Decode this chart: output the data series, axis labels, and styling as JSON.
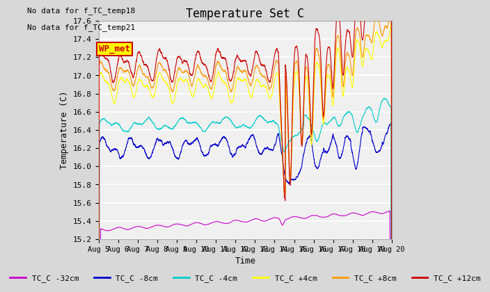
{
  "title": "Temperature Set C",
  "xlabel": "Time",
  "ylabel": "Temperature (C)",
  "ylim": [
    15.2,
    17.6
  ],
  "annotations": [
    "No data for f_TC_temp18",
    "No data for f_TC_temp21"
  ],
  "wp_met_label": "WP_met",
  "wp_met_color": "#cc0000",
  "wp_met_bg": "#ffff00",
  "x_tick_labels": [
    "Aug 5",
    "Aug 6",
    "Aug 7",
    "Aug 8",
    "Aug 9",
    "Aug 10",
    "Aug 11",
    "Aug 12",
    "Aug 13",
    "Aug 14",
    "Aug 15",
    "Aug 16",
    "Aug 17",
    "Aug 18",
    "Aug 19",
    "Aug 20"
  ],
  "series_colors": [
    "#cc00cc",
    "#0000cc",
    "#00cccc",
    "#ffff00",
    "#ff9900",
    "#cc0000"
  ],
  "series_labels": [
    "TC_C -32cm",
    "TC_C -8cm",
    "TC_C -4cm",
    "TC_C +4cm",
    "TC_C +8cm",
    "TC_C +12cm"
  ],
  "background_color": "#d8d8d8",
  "plot_bg_color": "#f0f0f0",
  "grid_color": "#ffffff",
  "font_family": "DejaVu Sans Mono"
}
